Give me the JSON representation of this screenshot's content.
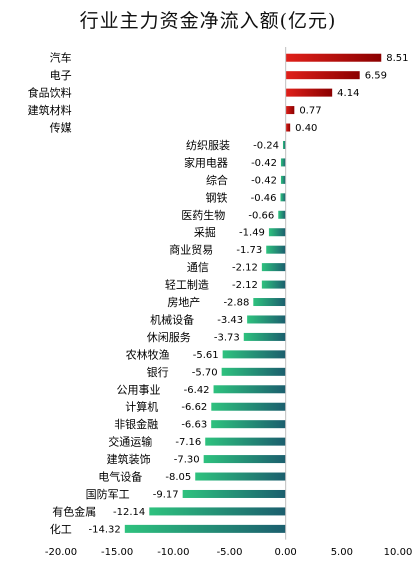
{
  "chart_data": {
    "type": "bar",
    "orientation": "horizontal",
    "title": "行业主力资金净流入额(亿元)",
    "xlim": [
      -20,
      10
    ],
    "x_ticks": [
      "-20.00",
      "-15.00",
      "-10.00",
      "-5.00",
      "0.00",
      "5.00",
      "10.00"
    ],
    "grid": false,
    "legend": "none",
    "categories": [
      "汽车",
      "电子",
      "食品饮料",
      "建筑材料",
      "传媒",
      "纺织服装",
      "家用电器",
      "综合",
      "钢铁",
      "医药生物",
      "采掘",
      "商业贸易",
      "通信",
      "轻工制造",
      "房地产",
      "机械设备",
      "休闲服务",
      "农林牧渔",
      "银行",
      "公用事业",
      "计算机",
      "非银金融",
      "交通运输",
      "建筑装饰",
      "电气设备",
      "国防军工",
      "有色金属",
      "化工"
    ],
    "values": [
      8.51,
      6.59,
      4.14,
      0.77,
      0.4,
      -0.24,
      -0.42,
      -0.42,
      -0.46,
      -0.66,
      -1.49,
      -1.73,
      -2.12,
      -2.12,
      -2.88,
      -3.43,
      -3.73,
      -5.61,
      -5.7,
      -6.42,
      -6.62,
      -6.63,
      -7.16,
      -7.3,
      -8.05,
      -9.17,
      -12.14,
      -14.32
    ],
    "value_labels": [
      "8.51",
      "6.59",
      "4.14",
      "0.77",
      "0.40",
      "-0.24",
      "-0.42",
      "-0.42",
      "-0.46",
      "-0.66",
      "-1.49",
      "-1.73",
      "-2.12",
      "-2.12",
      "-2.88",
      "-3.43",
      "-3.73",
      "-5.61",
      "-5.70",
      "-6.42",
      "-6.62",
      "-6.63",
      "-7.16",
      "-7.30",
      "-8.05",
      "-9.17",
      "-12.14",
      "-14.32"
    ],
    "colors": {
      "positive_dark": "#8b0000",
      "positive_light": "#e0201a",
      "negative_dark": "#1b5e6e",
      "negative_light": "#2ec27e"
    }
  }
}
